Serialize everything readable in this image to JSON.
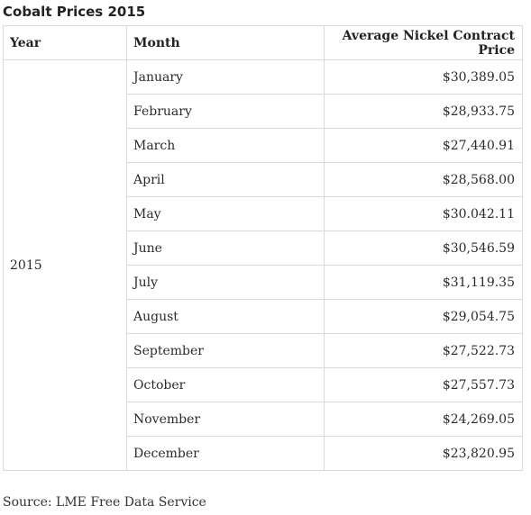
{
  "title": "Cobalt Prices 2015",
  "table": {
    "headers": {
      "year": "Year",
      "month": "Month",
      "price": "Average Nickel Contract Price"
    },
    "year": "2015",
    "rows": [
      {
        "month": "January",
        "price": "$30,389.05"
      },
      {
        "month": "February",
        "price": "$28,933.75"
      },
      {
        "month": "March",
        "price": "$27,440.91"
      },
      {
        "month": "April",
        "price": "$28,568.00"
      },
      {
        "month": "May",
        "price": "$30.042.11"
      },
      {
        "month": "June",
        "price": "$30,546.59"
      },
      {
        "month": "July",
        "price": "$31,119.35"
      },
      {
        "month": "August",
        "price": "$29,054.75"
      },
      {
        "month": "September",
        "price": "$27,522.73"
      },
      {
        "month": "October",
        "price": "$27,557.73"
      },
      {
        "month": "November",
        "price": "$24,269.05"
      },
      {
        "month": "December",
        "price": "$23,820.95"
      }
    ]
  },
  "source": "Source: LME Free Data Service"
}
